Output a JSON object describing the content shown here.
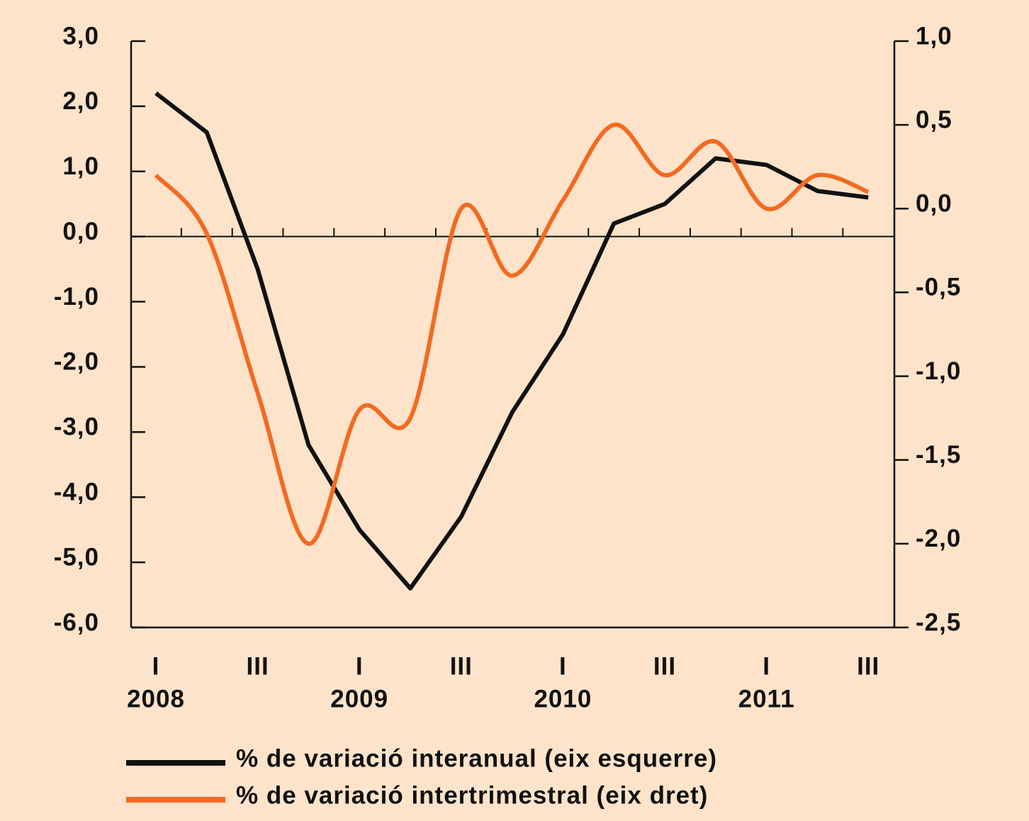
{
  "chart_data": {
    "type": "line",
    "categories": [
      "I",
      null,
      "III",
      null,
      "I",
      null,
      "III",
      null,
      "I",
      null,
      "III",
      null,
      "I",
      null,
      "III"
    ],
    "years": [
      "2008",
      "2009",
      "2010",
      "2011"
    ],
    "series": [
      {
        "name": "% de variació interanual (eix esquerre)",
        "color": "#111111",
        "axis": "y",
        "values": [
          2.2,
          1.6,
          -0.5,
          -3.2,
          -4.5,
          -5.4,
          -4.3,
          -2.7,
          -1.5,
          0.2,
          0.5,
          1.2,
          1.1,
          0.7,
          0.6
        ]
      },
      {
        "name": "% de variació intertrimestral (eix dret)",
        "color": "#f26a22",
        "axis": "y2",
        "values": [
          0.2,
          -0.15,
          -1.1,
          -2.0,
          -1.2,
          -1.25,
          0.0,
          -0.4,
          0.05,
          0.5,
          0.2,
          0.4,
          0.0,
          0.2,
          0.1
        ]
      }
    ],
    "ylim": [
      -6,
      3
    ],
    "yticks": [
      {
        "value": -6,
        "label": "-6,0"
      },
      {
        "value": -5,
        "label": "-5,0"
      },
      {
        "value": -4,
        "label": "-4,0"
      },
      {
        "value": -3,
        "label": "-3,0"
      },
      {
        "value": -2,
        "label": "-2,0"
      },
      {
        "value": -1,
        "label": "-1,0"
      },
      {
        "value": 0,
        "label": "0,0"
      },
      {
        "value": 1,
        "label": "1,0"
      },
      {
        "value": 2,
        "label": "2,0"
      },
      {
        "value": 3,
        "label": "3,0"
      }
    ],
    "y2lim": [
      -2.5,
      1
    ],
    "y2ticks": [
      {
        "value": -2.5,
        "label": "-2,5"
      },
      {
        "value": -2,
        "label": "-2,0"
      },
      {
        "value": -1.5,
        "label": "-1,5"
      },
      {
        "value": -1,
        "label": "-1,0"
      },
      {
        "value": -0.5,
        "label": "-0,5"
      },
      {
        "value": 0,
        "label": "0,0"
      },
      {
        "value": 0.5,
        "label": "0,5"
      },
      {
        "value": 1,
        "label": "1,0"
      }
    ]
  }
}
